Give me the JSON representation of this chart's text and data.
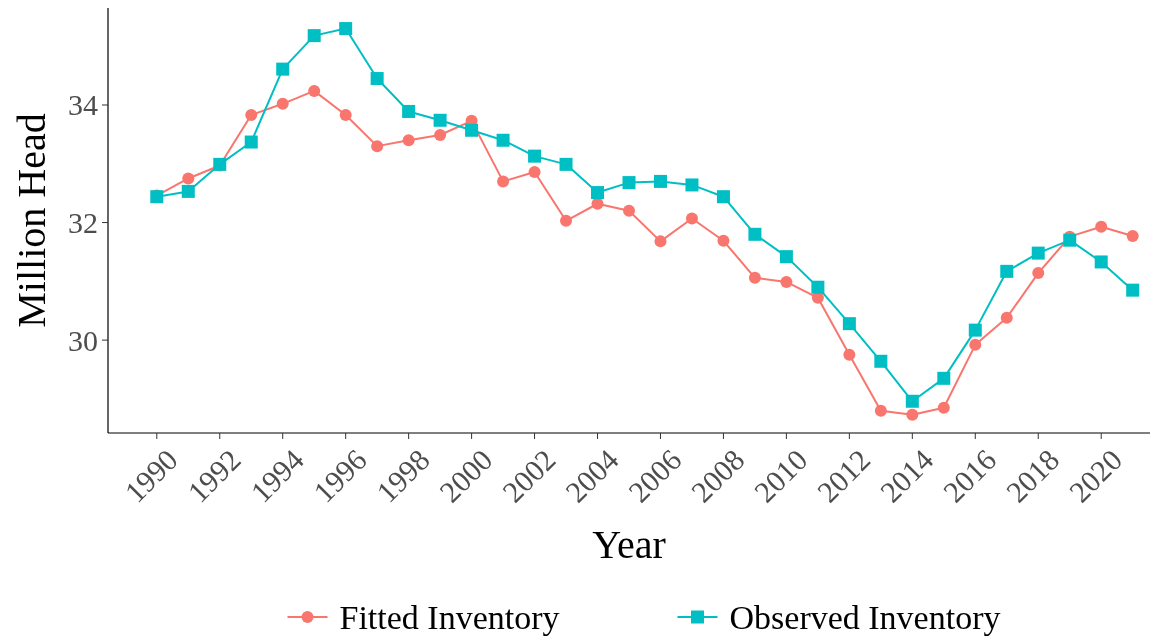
{
  "chart_data": {
    "type": "line",
    "xlabel": "Year",
    "ylabel": "Million Head",
    "x": [
      1990,
      1991,
      1992,
      1993,
      1994,
      1995,
      1996,
      1997,
      1998,
      1999,
      2000,
      2001,
      2002,
      2003,
      2004,
      2005,
      2006,
      2007,
      2008,
      2009,
      2010,
      2011,
      2012,
      2013,
      2014,
      2015,
      2016,
      2017,
      2018,
      2019,
      2020,
      2021
    ],
    "series": [
      {
        "name": "Fitted Inventory",
        "color": "#f8766d",
        "marker": "circle",
        "values": [
          32.46,
          32.75,
          32.97,
          33.83,
          34.02,
          34.24,
          33.83,
          33.3,
          33.4,
          33.49,
          33.73,
          32.7,
          32.86,
          32.03,
          32.32,
          32.2,
          31.68,
          32.07,
          31.69,
          31.06,
          30.99,
          30.72,
          29.75,
          28.8,
          28.73,
          28.85,
          29.92,
          30.38,
          31.14,
          31.76,
          31.93,
          31.77
        ]
      },
      {
        "name": "Observed Inventory",
        "color": "#00bfc4",
        "marker": "square",
        "values": [
          32.44,
          32.53,
          32.99,
          33.37,
          34.61,
          35.18,
          35.3,
          34.45,
          33.89,
          33.74,
          33.57,
          33.4,
          33.13,
          32.99,
          32.51,
          32.68,
          32.7,
          32.64,
          32.44,
          31.8,
          31.42,
          30.9,
          30.28,
          29.64,
          28.96,
          29.35,
          30.17,
          31.17,
          31.48,
          31.7,
          31.33,
          30.85
        ]
      }
    ],
    "xlim": [
      1988.45,
      2021.55
    ],
    "xticks": [
      1990,
      1992,
      1994,
      1996,
      1998,
      2000,
      2002,
      2004,
      2006,
      2008,
      2010,
      2012,
      2014,
      2016,
      2018,
      2020
    ],
    "ylim": [
      28.42,
      35.65
    ],
    "yticks": [
      30,
      32,
      34
    ],
    "grid": false,
    "legend": "bottom"
  }
}
